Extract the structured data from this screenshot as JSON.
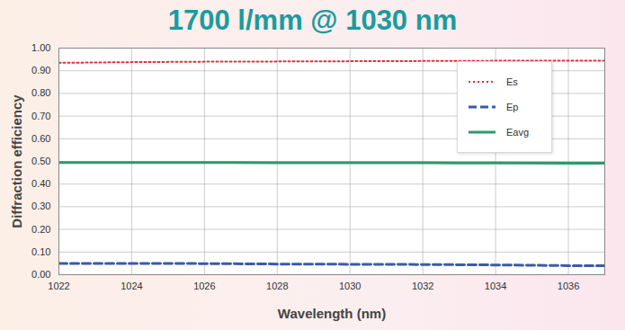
{
  "chart_data": {
    "type": "line",
    "title": "1700 l/mm @ 1030 nm",
    "x_label": "Wavelength (nm)",
    "y_label": "Diffraction efficiency",
    "x": [
      1022,
      1024,
      1026,
      1028,
      1030,
      1032,
      1034,
      1036,
      1037
    ],
    "series": [
      {
        "name": "Es",
        "color": "#e0303a",
        "line_style": "dotted",
        "values": [
          0.935,
          0.938,
          0.94,
          0.941,
          0.942,
          0.943,
          0.944,
          0.944,
          0.944
        ]
      },
      {
        "name": "Ep",
        "color": "#3a5ba8",
        "line_style": "dashed",
        "values": [
          0.05,
          0.05,
          0.049,
          0.047,
          0.046,
          0.045,
          0.043,
          0.04,
          0.04
        ]
      },
      {
        "name": "Eavg",
        "color": "#2e9a6a",
        "line_style": "solid",
        "values": [
          0.495,
          0.495,
          0.495,
          0.494,
          0.494,
          0.494,
          0.493,
          0.492,
          0.492
        ]
      }
    ],
    "xlim": [
      1022,
      1037
    ],
    "xticks": [
      1022,
      1024,
      1026,
      1028,
      1030,
      1032,
      1034,
      1036
    ],
    "ylim": [
      0,
      1
    ],
    "yticks": [
      {
        "value": 0,
        "label": "0.00"
      },
      {
        "value": 0.1,
        "label": "0.10"
      },
      {
        "value": 0.2,
        "label": "0.20"
      },
      {
        "value": 0.3,
        "label": "0.30"
      },
      {
        "value": 0.4,
        "label": "0.40"
      },
      {
        "value": 0.5,
        "label": "0.50"
      },
      {
        "value": 0.6,
        "label": "0.60"
      },
      {
        "value": 0.7,
        "label": "0.70"
      },
      {
        "value": 0.8,
        "label": "0.80"
      },
      {
        "value": 0.9,
        "label": "0.90"
      },
      {
        "value": 1,
        "label": "1.00"
      }
    ],
    "grid": true,
    "legend": "top-right"
  }
}
